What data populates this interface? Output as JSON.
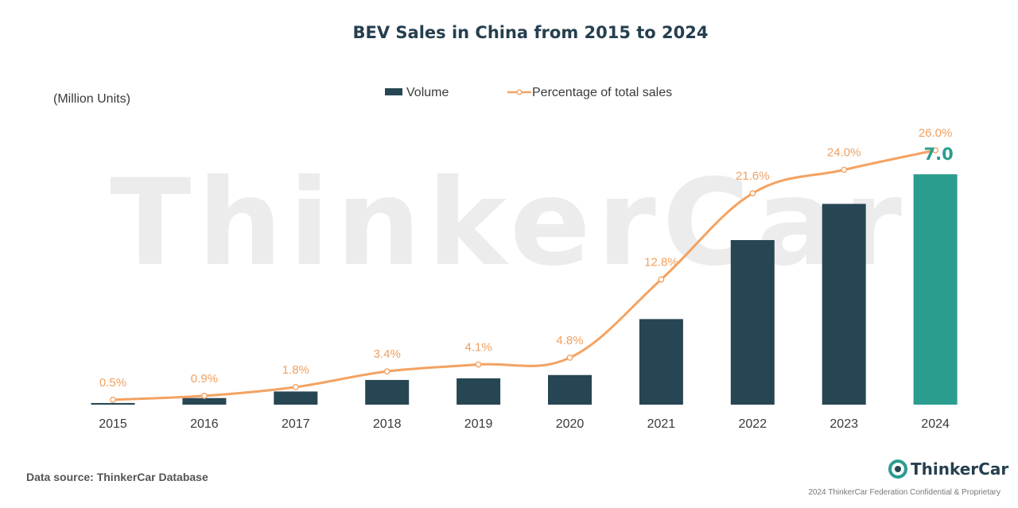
{
  "chart_data": {
    "type": "bar",
    "title": "BEV Sales in China from 2015 to 2024",
    "ylabel": "(Million Units)",
    "categories": [
      "2015",
      "2016",
      "2017",
      "2018",
      "2019",
      "2020",
      "2021",
      "2022",
      "2023",
      "2024"
    ],
    "series": [
      {
        "name": "Volume",
        "type": "bar",
        "values": [
          0.05,
          0.2,
          0.4,
          0.75,
          0.8,
          0.9,
          2.6,
          5.0,
          6.1,
          7.0
        ],
        "data_labels": [
          "",
          "",
          "",
          "",
          "",
          "",
          "",
          "",
          "",
          "7.0"
        ],
        "color": "#274653",
        "highlight_color": "#2a9d8f"
      },
      {
        "name": "Percentage of total sales",
        "type": "line",
        "values": [
          0.5,
          0.9,
          1.8,
          3.4,
          4.1,
          4.8,
          12.8,
          21.6,
          24.0,
          26.0
        ],
        "data_labels": [
          "0.5%",
          "0.9%",
          "1.8%",
          "3.4%",
          "4.1%",
          "4.8%",
          "12.8%",
          "21.6%",
          "24.0%",
          "26.0%"
        ],
        "color": "#f4a261"
      }
    ],
    "ylim": [
      0,
      7.2
    ],
    "grid": false,
    "legend_position": "top-center"
  },
  "watermark": "ThinkerCar",
  "source_note": "Data source: ThinkerCar Database",
  "brand": "ThinkerCar",
  "footer": "2024 ThinkerCar Federation Confidential & Proprietary"
}
